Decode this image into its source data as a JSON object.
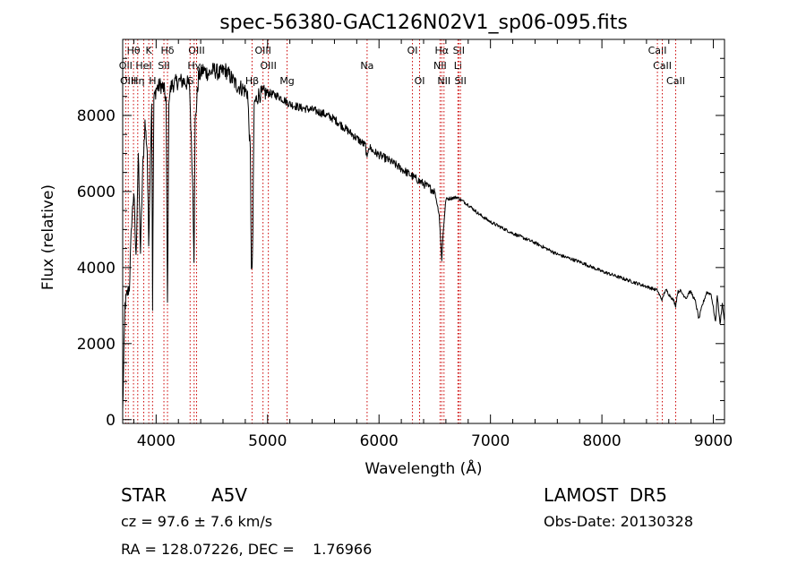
{
  "chart_data": {
    "type": "line",
    "title": "spec-56380-GAC126N02V1_sp06-095.fits",
    "xlabel": "Wavelength (Å)",
    "ylabel": "Flux (relative)",
    "xlim": [
      3700,
      9100
    ],
    "ylim": [
      -100,
      10000
    ],
    "xticks": [
      4000,
      5000,
      6000,
      7000,
      8000,
      9000
    ],
    "yticks": [
      0,
      2000,
      4000,
      6000,
      8000
    ],
    "grid": false,
    "series": [
      {
        "x": [
          3700,
          3720,
          3740,
          3760,
          3780,
          3800,
          3820,
          3840,
          3860,
          3880,
          3900,
          3920,
          3933,
          3945,
          3960,
          3968,
          3980,
          4000,
          4040,
          4070,
          4090,
          4102,
          4115,
          4140,
          4200,
          4250,
          4300,
          4330,
          4340,
          4350,
          4380,
          4420,
          4470,
          4520,
          4570,
          4620,
          4670,
          4720,
          4780,
          4820,
          4845,
          4855,
          4861,
          4868,
          4880,
          4920,
          5000,
          5100,
          5200,
          5300,
          5400,
          5500,
          5600,
          5700,
          5800,
          5880,
          5893,
          5906,
          5950,
          6100,
          6250,
          6400,
          6500,
          6540,
          6555,
          6563,
          6575,
          6600,
          6700,
          6800,
          6900,
          7000,
          7200,
          7400,
          7600,
          7800,
          8000,
          8200,
          8400,
          8498,
          8520,
          8542,
          8560,
          8580,
          8600,
          8640,
          8662,
          8680,
          8700,
          8740,
          8760,
          8780,
          8800,
          8840,
          8870,
          8900,
          8940,
          8980,
          9020,
          9035,
          9060,
          9080,
          9100
        ],
        "values": [
          200,
          3000,
          3300,
          3500,
          5200,
          6000,
          4200,
          7000,
          4400,
          6600,
          7800,
          7100,
          4600,
          6400,
          8400,
          3000,
          8400,
          8700,
          8800,
          8700,
          8400,
          3000,
          8500,
          8800,
          8900,
          8900,
          8800,
          6000,
          4300,
          7800,
          9000,
          9200,
          9100,
          9200,
          9100,
          9200,
          9000,
          8800,
          8700,
          8600,
          7000,
          4100,
          3800,
          5000,
          8300,
          8550,
          8600,
          8500,
          8300,
          8200,
          8150,
          8050,
          7900,
          7650,
          7400,
          7200,
          6800,
          7200,
          7050,
          6800,
          6500,
          6200,
          6000,
          5400,
          4600,
          4200,
          4900,
          5800,
          5850,
          5650,
          5400,
          5200,
          4900,
          4650,
          4350,
          4150,
          3900,
          3700,
          3500,
          3400,
          3250,
          3150,
          3350,
          3400,
          3300,
          3150,
          3000,
          3350,
          3400,
          3250,
          3200,
          3350,
          3350,
          3100,
          2650,
          3000,
          3350,
          3300,
          2550,
          3300,
          2500,
          3050,
          2600
        ]
      }
    ],
    "line_ids": [
      {
        "label": "Hθ",
        "x": 3797,
        "row": 1
      },
      {
        "label": "OII",
        "x": 3727,
        "row": 2
      },
      {
        "label": "OIII",
        "x": 3750,
        "row": 3
      },
      {
        "label": "K",
        "x": 3934,
        "row": 1
      },
      {
        "label": "HeI",
        "x": 3889,
        "row": 2
      },
      {
        "label": "Hη",
        "x": 3835,
        "row": 3
      },
      {
        "label": "SII",
        "x": 4070,
        "row": 2
      },
      {
        "label": "H",
        "x": 3968,
        "row": 3
      },
      {
        "label": "Hδ",
        "x": 4102,
        "row": 1
      },
      {
        "label": "OIII",
        "x": 4363,
        "row": 1
      },
      {
        "label": "Hγ",
        "x": 4341,
        "row": 2
      },
      {
        "label": "G",
        "x": 4305,
        "row": 3
      },
      {
        "label": "OIII",
        "x": 4959,
        "row": 1
      },
      {
        "label": "OIII",
        "x": 5007,
        "row": 2
      },
      {
        "label": "Hβ",
        "x": 4861,
        "row": 3
      },
      {
        "label": "Mg",
        "x": 5175,
        "row": 3
      },
      {
        "label": "Na",
        "x": 5893,
        "row": 2
      },
      {
        "label": "OI",
        "x": 6300,
        "row": 1
      },
      {
        "label": "OI",
        "x": 6364,
        "row": 3
      },
      {
        "label": "Hα",
        "x": 6563,
        "row": 1
      },
      {
        "label": "NII",
        "x": 6548,
        "row": 2
      },
      {
        "label": "NII",
        "x": 6583,
        "row": 3
      },
      {
        "label": "SII",
        "x": 6716,
        "row": 1
      },
      {
        "label": "Li",
        "x": 6708,
        "row": 2
      },
      {
        "label": "SII",
        "x": 6731,
        "row": 3
      },
      {
        "label": "CaII",
        "x": 8498,
        "row": 1
      },
      {
        "label": "CaII",
        "x": 8542,
        "row": 2
      },
      {
        "label": "CaII",
        "x": 8662,
        "row": 3
      }
    ]
  },
  "info": {
    "class_label": "STAR",
    "subclass": "A5V",
    "survey": "LAMOST  DR5",
    "cz": "cz = 97.6 ± 7.6 km/s",
    "obs_date": "Obs-Date: 20130328",
    "coords": "RA = 128.07226, DEC =    1.76966"
  },
  "colors": {
    "spectrum": "#000000",
    "line_markers": "#cc0000",
    "background": "#ffffff"
  }
}
